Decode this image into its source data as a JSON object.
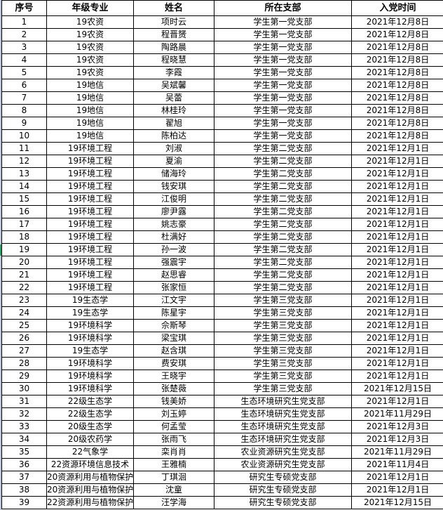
{
  "headers": [
    "序号",
    "年级专业",
    "姓名",
    "所在支部",
    "入党时间"
  ],
  "rows": [
    [
      "1",
      "19农资",
      "项时云",
      "学生第一党支部",
      "2021年12月8日"
    ],
    [
      "2",
      "19农资",
      "程晋赟",
      "学生第一党支部",
      "2021年12月8日"
    ],
    [
      "3",
      "19农资",
      "陶路晨",
      "学生第一党支部",
      "2021年12月8日"
    ],
    [
      "4",
      "19农资",
      "程晓慧",
      "学生第一党支部",
      "2021年12月8日"
    ],
    [
      "5",
      "19农资",
      "李霞",
      "学生第一党支部",
      "2021年12月8日"
    ],
    [
      "6",
      "19地信",
      "吴斌馨",
      "学生第一党支部",
      "2021年12月8日"
    ],
    [
      "7",
      "19地信",
      "吴蕾",
      "学生第一党支部",
      "2021年12月8日"
    ],
    [
      "8",
      "19地信",
      "林桂玲",
      "学生第一党支部",
      "2021年12月8日"
    ],
    [
      "9",
      "19地信",
      "翟旭",
      "学生第一党支部",
      "2021年12月8日"
    ],
    [
      "10",
      "19地信",
      "陈柏达",
      "学生第一党支部",
      "2021年12月8日"
    ],
    [
      "11",
      "19环境工程",
      "刘淑",
      "学生第二党支部",
      "2021年12月1日"
    ],
    [
      "12",
      "19环境工程",
      "夏渝",
      "学生第二党支部",
      "2021年12月1日"
    ],
    [
      "13",
      "19环境工程",
      "储海玲",
      "学生第二党支部",
      "2021年12月1日"
    ],
    [
      "14",
      "19环境工程",
      "钱安琪",
      "学生第二党支部",
      "2021年12月1日"
    ],
    [
      "15",
      "19环境工程",
      "江俊明",
      "学生第二党支部",
      "2021年12月1日"
    ],
    [
      "16",
      "19环境工程",
      "廖尹露",
      "学生第二党支部",
      "2021年12月1日"
    ],
    [
      "17",
      "19环境工程",
      "姚志豪",
      "学生第二党支部",
      "2021年12月1日"
    ],
    [
      "18",
      "19环境工程",
      "杜满好",
      "学生第二党支部",
      "2021年12月1日"
    ],
    [
      "19",
      "19环境工程",
      "孙一波",
      "学生第二党支部",
      "2021年12月1日"
    ],
    [
      "20",
      "19环境工程",
      "强震宇",
      "学生第二党支部",
      "2021年12月1日"
    ],
    [
      "21",
      "19环境工程",
      "赵思睿",
      "学生第二党支部",
      "2021年12月1日"
    ],
    [
      "22",
      "19环境工程",
      "张家恒",
      "学生第二党支部",
      "2021年12月1日"
    ],
    [
      "23",
      "19生态学",
      "江文宇",
      "学生第三党支部",
      "2021年12月1日"
    ],
    [
      "24",
      "19生态学",
      "陈星宇",
      "学生第三党支部",
      "2021年12月1日"
    ],
    [
      "25",
      "19环境科学",
      "佘斯琴",
      "学生第三党支部",
      "2021年12月1日"
    ],
    [
      "26",
      "19环境科学",
      "梁宝琪",
      "学生第三党支部",
      "2021年12月1日"
    ],
    [
      "27",
      "19生态学",
      "赵含琪",
      "学生第三党支部",
      "2021年12月1日"
    ],
    [
      "28",
      "19环境科学",
      "费安琪",
      "学生第三党支部",
      "2021年12月1日"
    ],
    [
      "29",
      "19环境科学",
      "王晓宇",
      "学生第三党支部",
      "2021年12月1日"
    ],
    [
      "30",
      "19环境科学",
      "张楚薇",
      "学生第三党支部",
      "2021年12月15日"
    ],
    [
      "31",
      "22级生态学",
      "钱美娇",
      "生态环境研究生党支部",
      "2021年12月1日"
    ],
    [
      "32",
      "22级生态学",
      "刘玉婷",
      "生态环境研究生党支部",
      "2021年11月29日"
    ],
    [
      "33",
      "20级生态学",
      "何孟莹",
      "生态环境研究生党支部",
      "2021年12月3日"
    ],
    [
      "34",
      "20级农药学",
      "张雨飞",
      "生态环境研究生党支部",
      "2021年12月3日"
    ],
    [
      "35",
      "22气象学",
      "栾肖肖",
      "农业资源研究生党支部",
      "2021年11月29日"
    ],
    [
      "36",
      "22资源环境信息技术",
      "王雅楠",
      "农业资源研究生党支部",
      "2021年11月4日"
    ],
    [
      "37",
      "20资源利用与植物保护",
      "丁琪洄",
      "研究生专硕党支部",
      "2021年12月1日"
    ],
    [
      "38",
      "20资源利用与植物保护",
      "沈童",
      "研究生专硕党支部",
      "2021年12月1日"
    ],
    [
      "39",
      "22资源利用与植物保护",
      "汪学海",
      "研究生专硕党支部",
      "2021年12月15日"
    ]
  ]
}
